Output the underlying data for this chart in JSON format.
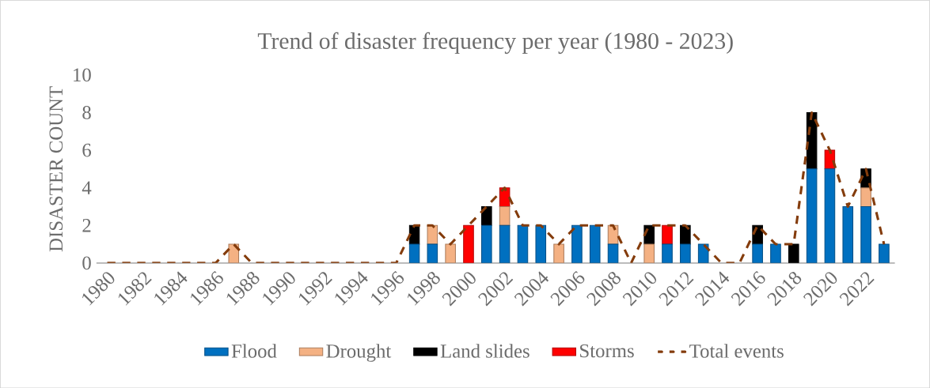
{
  "chart_data": {
    "type": "bar",
    "stacked": true,
    "title": "Trend of disaster frequency per year (1980 - 2023)",
    "ylabel": "DISASTER COUNT",
    "categories": [
      "1980",
      null,
      "1982",
      null,
      "1984",
      null,
      "1986",
      null,
      "1988",
      null,
      "1990",
      null,
      "1992",
      null,
      "1994",
      null,
      "1996",
      null,
      "1998",
      null,
      "2000",
      null,
      "2002",
      null,
      "2004",
      null,
      "2006",
      null,
      "2008",
      null,
      "2010",
      null,
      "2012",
      null,
      "2014",
      null,
      "2016",
      null,
      "2018",
      null,
      "2020",
      null,
      "2022",
      null
    ],
    "ylim": [
      0,
      10
    ],
    "yticks": [
      0,
      2,
      4,
      6,
      8,
      10
    ],
    "legend": "bottom",
    "series": [
      {
        "name": "Flood",
        "color": "#0070c0",
        "values": [
          0,
          0,
          0,
          0,
          0,
          0,
          0,
          0,
          0,
          0,
          0,
          0,
          0,
          0,
          0,
          0,
          0,
          1,
          1,
          0,
          0,
          2,
          2,
          2,
          2,
          0,
          2,
          2,
          1,
          0,
          0,
          1,
          1,
          1,
          0,
          0,
          1,
          1,
          0,
          5,
          5,
          3,
          3,
          1
        ]
      },
      {
        "name": "Drought",
        "color": "#f4b183",
        "values": [
          0,
          0,
          0,
          0,
          0,
          0,
          0,
          1,
          0,
          0,
          0,
          0,
          0,
          0,
          0,
          0,
          0,
          0,
          1,
          1,
          0,
          0,
          1,
          0,
          0,
          1,
          0,
          0,
          1,
          0,
          1,
          0,
          0,
          0,
          0,
          0,
          0,
          0,
          0,
          0,
          0,
          0,
          1,
          0
        ]
      },
      {
        "name": "Land slides",
        "color": "#000000",
        "values": [
          0,
          0,
          0,
          0,
          0,
          0,
          0,
          0,
          0,
          0,
          0,
          0,
          0,
          0,
          0,
          0,
          0,
          1,
          0,
          0,
          0,
          1,
          0,
          0,
          0,
          0,
          0,
          0,
          0,
          0,
          1,
          0,
          1,
          0,
          0,
          0,
          1,
          0,
          1,
          3,
          0,
          0,
          1,
          0
        ]
      },
      {
        "name": "Storms",
        "color": "#ff0000",
        "values": [
          0,
          0,
          0,
          0,
          0,
          0,
          0,
          0,
          0,
          0,
          0,
          0,
          0,
          0,
          0,
          0,
          0,
          0,
          0,
          0,
          2,
          0,
          1,
          0,
          0,
          0,
          0,
          0,
          0,
          0,
          0,
          1,
          0,
          0,
          0,
          0,
          0,
          0,
          0,
          0,
          1,
          0,
          0,
          0
        ]
      },
      {
        "name": "Total events",
        "type": "line",
        "line_style": "dashed",
        "color": "#843c0c",
        "values": [
          0,
          0,
          0,
          0,
          0,
          0,
          0,
          1,
          0,
          0,
          0,
          0,
          0,
          0,
          0,
          0,
          0,
          2,
          2,
          1,
          2,
          3,
          4,
          2,
          2,
          1,
          2,
          2,
          2,
          0,
          2,
          2,
          2,
          1,
          0,
          0,
          2,
          1,
          1,
          8,
          6,
          3,
          5,
          1
        ]
      }
    ]
  }
}
